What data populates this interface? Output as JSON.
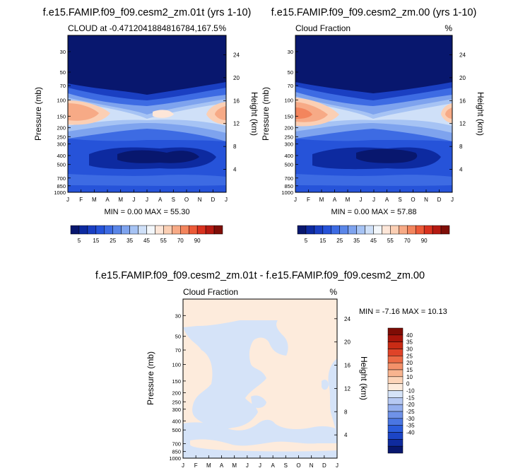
{
  "colors": {
    "colormap": [
      "#08176e",
      "#0d2aa0",
      "#1a3fc2",
      "#2653d9",
      "#3d6be3",
      "#5a86e8",
      "#7ea3ee",
      "#a6c3f4",
      "#cfe0f8",
      "#f3f7fb",
      "#fde6d8",
      "#fbcfb4",
      "#f7aa86",
      "#f3855d",
      "#ec5a38",
      "#d9321f",
      "#b51a12",
      "#7f0e08"
    ],
    "diff_colormap": [
      "#08176e",
      "#0f2b9e",
      "#1c45c6",
      "#2b5cdb",
      "#4a76e2",
      "#6f92e8",
      "#94afee",
      "#b6c9f3",
      "#d5e3f8",
      "#fdebdc",
      "#fcd4b8",
      "#f8b48f",
      "#f3916a",
      "#ec6a45",
      "#df4328",
      "#c92b15",
      "#a8150b",
      "#7e0c05"
    ]
  },
  "chart_data": [
    {
      "type": "heatmap",
      "title": "f.e15.FAMIP.f09_f09.cesm2_zm.01t (yrs 1-10)",
      "subtitle_left": "CLOUD at -0.4712041884816784,167.5",
      "subtitle_right": "%",
      "xlabel": "",
      "ylabel": "Pressure (mb)",
      "ylabel_right": "Height (km)",
      "x_ticks": [
        "J",
        "F",
        "M",
        "A",
        "M",
        "J",
        "J",
        "A",
        "S",
        "O",
        "N",
        "D",
        "J"
      ],
      "y_ticks": [
        "30",
        "50",
        "70",
        "100",
        "150",
        "200",
        "250",
        "300",
        "400",
        "500",
        "700",
        "850",
        "1000"
      ],
      "y_ticks_right": [
        "24",
        "20",
        "16",
        "12",
        "8",
        "4"
      ],
      "min_max_label": "MIN =   0.00 MAX =  55.30",
      "colorbar_labels": [
        "5",
        "15",
        "25",
        "35",
        "45",
        "55",
        "70",
        "90"
      ]
    },
    {
      "type": "heatmap",
      "title": "f.e15.FAMIP.f09_f09.cesm2_zm.00 (yrs 1-10)",
      "subtitle_left": "Cloud Fraction",
      "subtitle_right": "%",
      "xlabel": "",
      "ylabel": "Pressure (mb)",
      "ylabel_right": "Height (km)",
      "x_ticks": [
        "J",
        "F",
        "M",
        "A",
        "M",
        "J",
        "J",
        "A",
        "S",
        "O",
        "N",
        "D",
        "J"
      ],
      "y_ticks": [
        "30",
        "50",
        "70",
        "100",
        "150",
        "200",
        "250",
        "300",
        "400",
        "500",
        "700",
        "850",
        "1000"
      ],
      "y_ticks_right": [
        "24",
        "20",
        "16",
        "12",
        "8",
        "4"
      ],
      "min_max_label": "MIN =   0.00 MAX =  57.88",
      "colorbar_labels": [
        "5",
        "15",
        "25",
        "35",
        "45",
        "55",
        "70",
        "90"
      ]
    },
    {
      "type": "heatmap",
      "title": "f.e15.FAMIP.f09_f09.cesm2_zm.01t - f.e15.FAMIP.f09_f09.cesm2_zm.00",
      "subtitle_left": "Cloud Fraction",
      "subtitle_right": "%",
      "xlabel": "",
      "ylabel": "Pressure (mb)",
      "ylabel_right": "Height (km)",
      "x_ticks": [
        "J",
        "F",
        "M",
        "A",
        "M",
        "J",
        "J",
        "A",
        "S",
        "O",
        "N",
        "D",
        "J"
      ],
      "y_ticks": [
        "30",
        "50",
        "70",
        "100",
        "150",
        "200",
        "250",
        "300",
        "400",
        "500",
        "700",
        "850",
        "1000"
      ],
      "y_ticks_right": [
        "24",
        "20",
        "16",
        "12",
        "8",
        "4"
      ],
      "min_max_label": "MIN =  -7.16 MAX =  10.13",
      "colorbar_labels": [
        "40",
        "35",
        "30",
        "25",
        "20",
        "15",
        "10",
        "0",
        "-10",
        "-15",
        "-20",
        "-25",
        "-30",
        "-35",
        "-40"
      ]
    }
  ]
}
